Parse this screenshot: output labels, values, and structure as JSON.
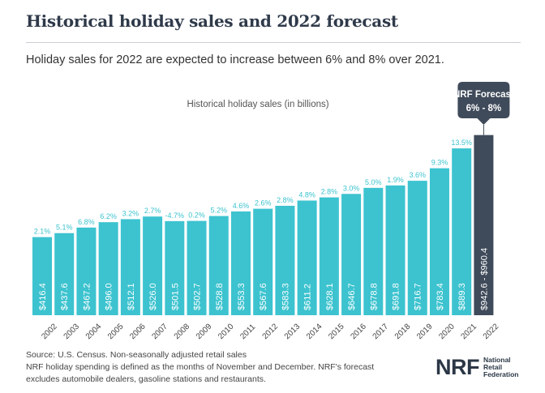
{
  "header": {
    "title": "Historical holiday sales and 2022 forecast",
    "subtitle": "Holiday sales for 2022 are expected to increase between 6% and 8% over 2021."
  },
  "footnotes": [
    "Source: U.S. Census. Non-seasonally adjusted retail sales",
    "NRF holiday spending is defined as the months of November and December. NRF's forecast",
    "excludes automobile dealers, gasoline stations and restaurants."
  ],
  "logo": {
    "mark": "NRF",
    "lines": [
      "National",
      "Retail",
      "Federation"
    ]
  },
  "colors": {
    "bar": "#3cc3cf",
    "forecast_bar": "#3f4a5a",
    "growth_label": "#3cc3cf",
    "value_label": "#ffffff",
    "callout_bg": "#3f4a5a"
  },
  "chart_data": {
    "type": "bar",
    "title": "Historical holiday sales (in billions)",
    "categories": [
      "2002",
      "2003",
      "2004",
      "2005",
      "2006",
      "2007",
      "2008",
      "2009",
      "2010",
      "2011",
      "2012",
      "2013",
      "2014",
      "2015",
      "2016",
      "2017",
      "2018",
      "2019",
      "2020",
      "2021"
    ],
    "values": [
      416.4,
      437.6,
      467.2,
      496.0,
      512.1,
      526.0,
      501.5,
      502.7,
      528.8,
      553.3,
      567.6,
      583.3,
      611.2,
      628.1,
      646.7,
      678.8,
      691.8,
      716.7,
      783.4,
      889.3
    ],
    "value_labels": [
      "$416.4",
      "$437.6",
      "$467.2",
      "$496.0",
      "$512.1",
      "$526.0",
      "$501.5",
      "$502.7",
      "$528.8",
      "$553.3",
      "$567.6",
      "$583.3",
      "$611.2",
      "$628.1",
      "$646.7",
      "$678.8",
      "$691.8",
      "$716.7",
      "$783.4",
      "$889.3"
    ],
    "growth_labels": [
      "2.1%",
      "5.1%",
      "6.8%",
      "6.2%",
      "3.2%",
      "2.7%",
      "-4.7%",
      "0.2%",
      "5.2%",
      "4.6%",
      "2.6%",
      "2.8%",
      "4.8%",
      "2.8%",
      "3.0%",
      "5.0%",
      "1.9%",
      "3.6%",
      "9.3%",
      "13.5%"
    ],
    "forecast": {
      "category": "2022",
      "low": 942.6,
      "high": 960.4,
      "value_label": "$942.6 - $960.4",
      "callout_title": "NRF Forecast",
      "callout_range": "6% - 8%"
    },
    "ylim": [
      0,
      1000
    ],
    "grid": false,
    "legend": "none"
  }
}
